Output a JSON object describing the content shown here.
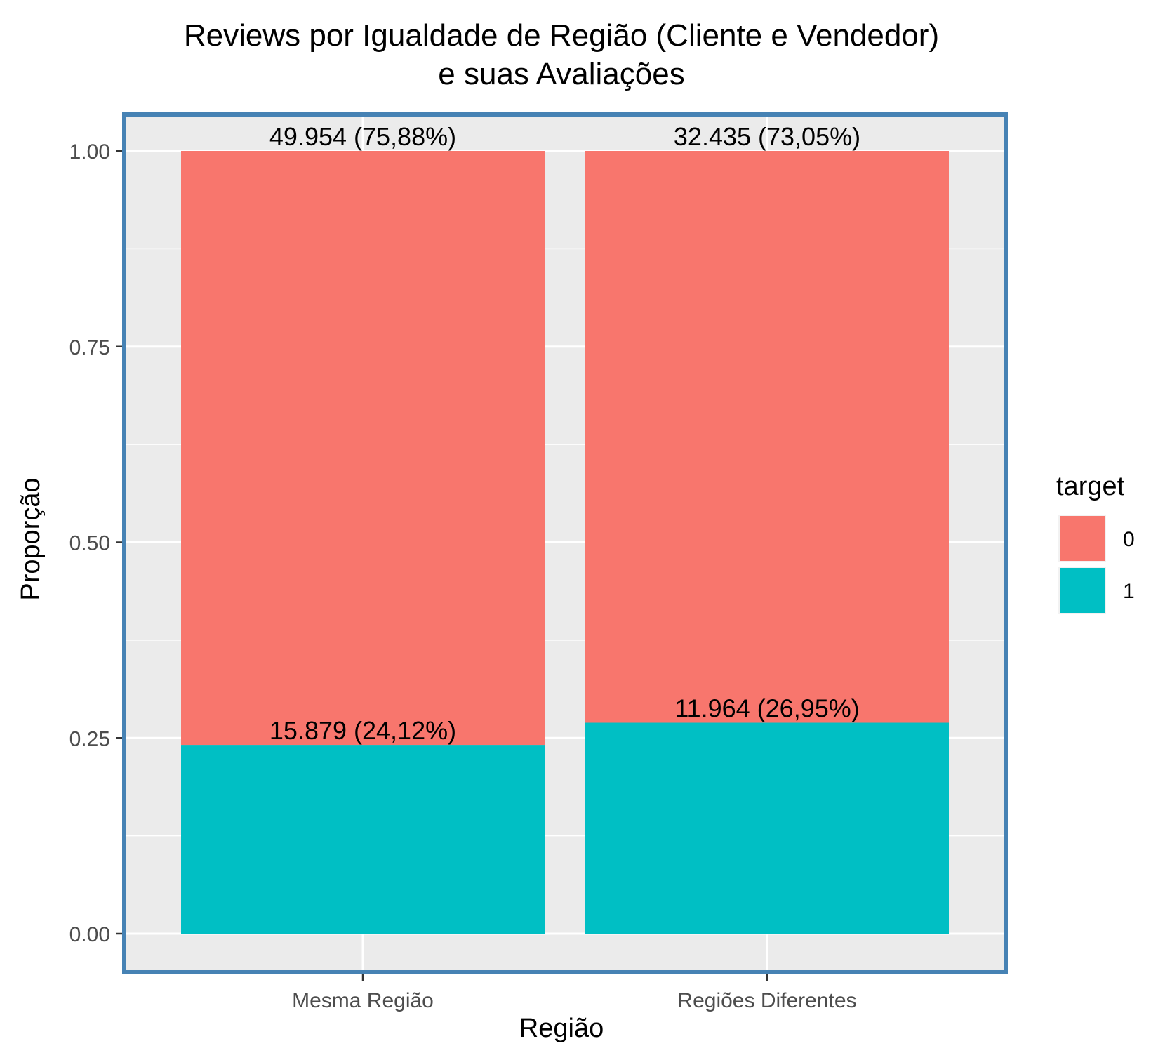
{
  "chart_data": {
    "type": "bar",
    "stacked": true,
    "title_lines": [
      "Reviews por Igualdade de Região (Cliente e Vendedor)",
      "e suas Avaliações"
    ],
    "xlabel": "Região",
    "ylabel": "Proporção",
    "categories": [
      "Mesma Região",
      "Regiões Diferentes"
    ],
    "ylim": [
      0,
      1
    ],
    "yticks": [
      0.0,
      0.25,
      0.5,
      0.75,
      1.0
    ],
    "ytick_labels": [
      "0.00",
      "0.25",
      "0.50",
      "0.75",
      "1.00"
    ],
    "grid": true,
    "legend": {
      "title": "target",
      "placement": "right",
      "entries": [
        {
          "label": "0",
          "color": "#F8766D"
        },
        {
          "label": "1",
          "color": "#00BFC4"
        }
      ]
    },
    "series": [
      {
        "name": "1",
        "color": "#00BFC4",
        "values": [
          0.2412,
          0.2695
        ],
        "labels": [
          "15.879 (24,12%)",
          "11.964 (26,95%)"
        ]
      },
      {
        "name": "0",
        "color": "#F8766D",
        "values": [
          0.7588,
          0.7305
        ],
        "labels": [
          "49.954 (75,88%)",
          "32.435 (73,05%)"
        ]
      }
    ],
    "panel_background": "#EBEBEB",
    "panel_border_color": "#4682B4"
  }
}
